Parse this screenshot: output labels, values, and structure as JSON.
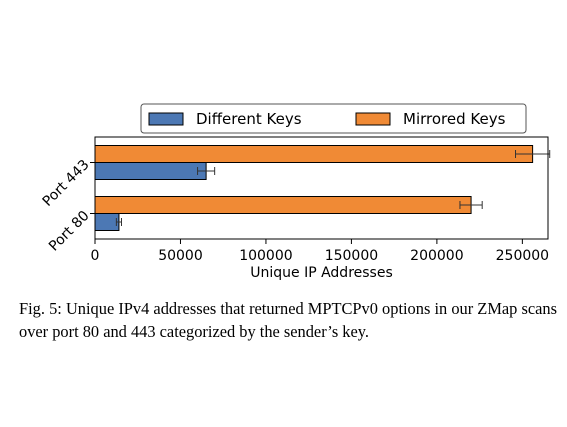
{
  "chart_data": {
    "type": "bar",
    "orientation": "horizontal",
    "categories": [
      "Port 80",
      "Port 443"
    ],
    "series": [
      {
        "name": "Different Keys",
        "color": "#4c78b4",
        "values": [
          14000,
          65000
        ],
        "errors": [
          1500,
          5000
        ]
      },
      {
        "name": "Mirrored Keys",
        "color": "#f08a35",
        "values": [
          220000,
          256000
        ],
        "errors": [
          6500,
          10000
        ]
      }
    ],
    "xlabel": "Unique IP Addresses",
    "ylabel": "",
    "xlim": [
      0,
      265000
    ],
    "xticks": [
      0,
      50000,
      100000,
      150000,
      200000,
      250000
    ],
    "xtick_labels": [
      "0",
      "50000",
      "100000",
      "150000",
      "200000",
      "250000"
    ],
    "grid": false,
    "legend_position": "top"
  },
  "caption": {
    "text": "Fig. 5: Unique IPv4 addresses that returned MPTCPv0 options in our ZMap scans over port 80 and 443 categorized by the sender’s key."
  }
}
